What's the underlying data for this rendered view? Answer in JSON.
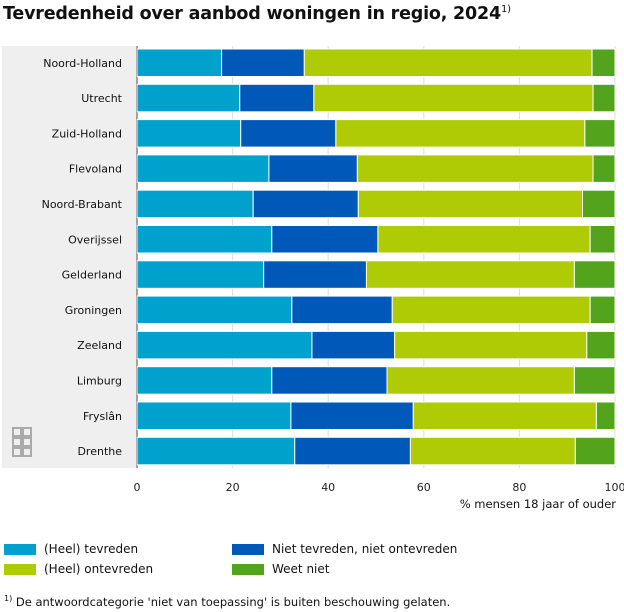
{
  "chart_data": {
    "type": "bar",
    "orientation": "horizontal",
    "stacked": true,
    "title": "Tevredenheid over aanbod woningen in regio, 2024",
    "title_footnote_mark": "1)",
    "xlabel": "% mensen 18 jaar of ouder",
    "xlim": [
      0,
      100
    ],
    "xticks": [
      "0",
      "20",
      "40",
      "60",
      "80",
      "100"
    ],
    "grid": true,
    "legend_position": "bottom",
    "categories": [
      "Noord-Holland",
      "Utrecht",
      "Zuid-Holland",
      "Flevoland",
      "Noord-Brabant",
      "Overijssel",
      "Gelderland",
      "Groningen",
      "Zeeland",
      "Limburg",
      "Fryslân",
      "Drenthe"
    ],
    "series": [
      {
        "name": "(Heel) tevreden",
        "color": "#00a1cd",
        "values": [
          17.7,
          21.5,
          21.7,
          27.6,
          24.3,
          28.2,
          26.5,
          32.4,
          36.6,
          28.2,
          32.2,
          33.0
        ]
      },
      {
        "name": "Niet tevreden, niet ontevreden",
        "color": "#0058b8",
        "values": [
          17.3,
          15.5,
          19.9,
          18.5,
          22.0,
          22.2,
          21.5,
          21.0,
          17.3,
          24.1,
          25.6,
          24.2
        ]
      },
      {
        "name": "(Heel) ontevreden",
        "color": "#afcb05",
        "values": [
          60.2,
          58.4,
          52.1,
          49.3,
          46.9,
          44.4,
          43.5,
          41.4,
          40.2,
          39.2,
          38.3,
          34.5
        ]
      },
      {
        "name": "Weet niet",
        "color": "#53a31d",
        "values": [
          4.8,
          4.6,
          6.3,
          4.6,
          6.8,
          5.2,
          8.5,
          5.2,
          5.9,
          8.5,
          3.9,
          8.3
        ]
      }
    ],
    "footnote": "De antwoordcategorie 'niet van toepassing' is buiten beschouwing gelaten.",
    "footnote_mark": "1)"
  },
  "logo": "cbs"
}
